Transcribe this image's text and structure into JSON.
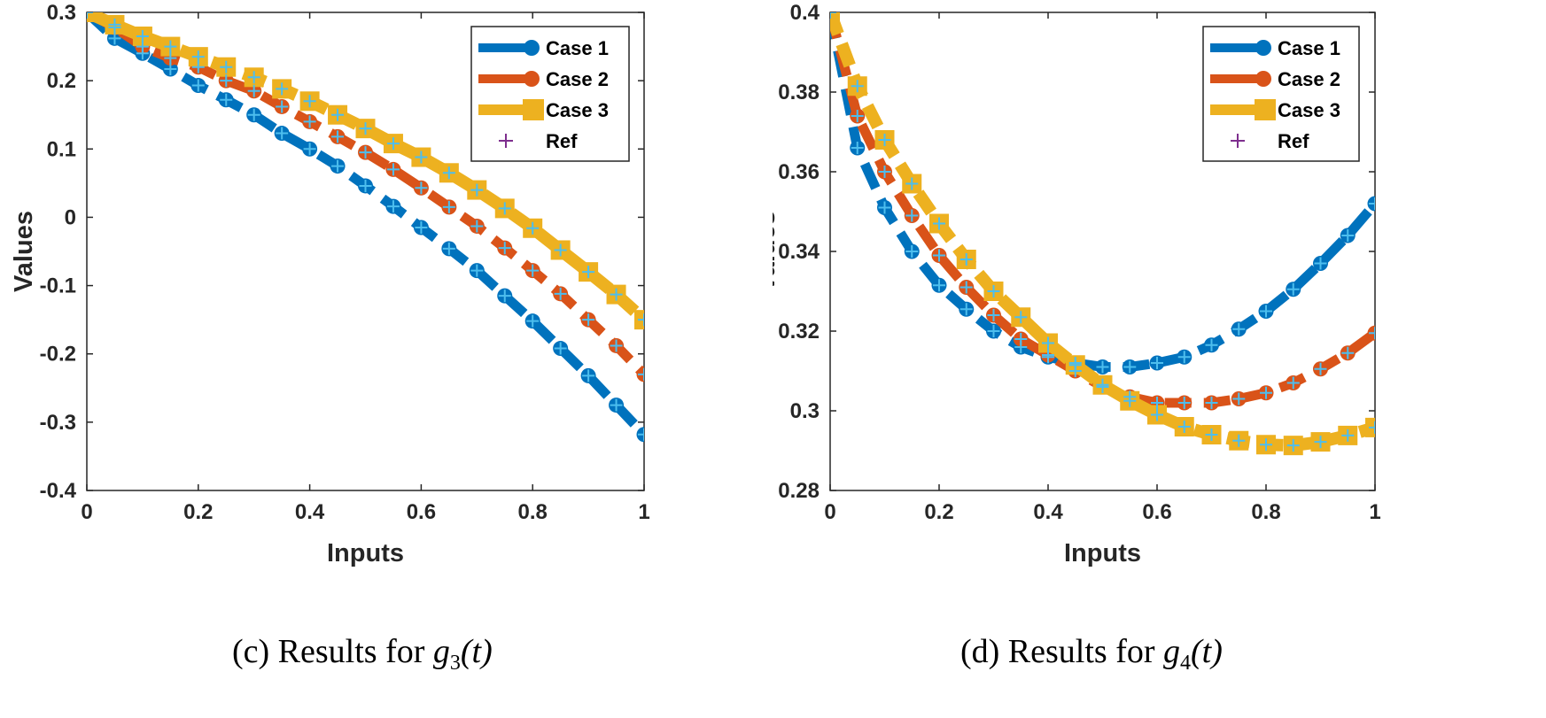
{
  "chart_data": [
    {
      "type": "line",
      "caption_prefix": "(c) Results for ",
      "caption_func": "g",
      "caption_sub": "3",
      "caption_arg": "(t)",
      "xlabel": "Inputs",
      "ylabel": "Values",
      "xlim": [
        0,
        1
      ],
      "ylim": [
        -0.4,
        0.3
      ],
      "xticks": [
        0,
        0.2,
        0.4,
        0.6,
        0.8,
        1
      ],
      "xtick_labels": [
        "0",
        "0.2",
        "0.4",
        "0.6",
        "0.8",
        "1"
      ],
      "yticks": [
        -0.4,
        -0.3,
        -0.2,
        -0.1,
        0,
        0.1,
        0.2,
        0.3
      ],
      "ytick_labels": [
        "-0.4",
        "-0.3",
        "-0.2",
        "-0.1",
        "0",
        "0.1",
        "0.2",
        "0.3"
      ],
      "legend": [
        "Case 1",
        "Case 2",
        "Case 3",
        "Ref"
      ],
      "legend_position": "top-right",
      "x": [
        0,
        0.05,
        0.1,
        0.15,
        0.2,
        0.25,
        0.3,
        0.35,
        0.4,
        0.45,
        0.5,
        0.55,
        0.6,
        0.65,
        0.7,
        0.75,
        0.8,
        0.85,
        0.9,
        0.95,
        1
      ],
      "series": [
        {
          "name": "Case 1",
          "color": "#0072BD",
          "marker": "circle",
          "values": [
            0.3,
            0.262,
            0.24,
            0.217,
            0.193,
            0.172,
            0.15,
            0.123,
            0.1,
            0.075,
            0.046,
            0.016,
            -0.015,
            -0.046,
            -0.078,
            -0.115,
            -0.152,
            -0.192,
            -0.232,
            -0.275,
            -0.318
          ]
        },
        {
          "name": "Case 2",
          "color": "#D95319",
          "marker": "circle",
          "values": [
            0.3,
            0.278,
            0.25,
            0.233,
            0.22,
            0.2,
            0.185,
            0.162,
            0.14,
            0.118,
            0.095,
            0.07,
            0.043,
            0.015,
            -0.013,
            -0.045,
            -0.078,
            -0.112,
            -0.15,
            -0.188,
            -0.23
          ]
        },
        {
          "name": "Case 3",
          "color": "#EDB120",
          "marker": "square",
          "values": [
            0.3,
            0.282,
            0.265,
            0.25,
            0.235,
            0.22,
            0.205,
            0.188,
            0.17,
            0.15,
            0.13,
            0.108,
            0.088,
            0.065,
            0.04,
            0.013,
            -0.016,
            -0.048,
            -0.08,
            -0.113,
            -0.15
          ]
        }
      ],
      "ref_color": "#7E2F8E"
    },
    {
      "type": "line",
      "caption_prefix": "(d) Results for ",
      "caption_func": "g",
      "caption_sub": "4",
      "caption_arg": "(t)",
      "xlabel": "Inputs",
      "ylabel": "Values",
      "xlim": [
        0,
        1
      ],
      "ylim": [
        0.28,
        0.4
      ],
      "xticks": [
        0,
        0.2,
        0.4,
        0.6,
        0.8,
        1
      ],
      "xtick_labels": [
        "0",
        "0.2",
        "0.4",
        "0.6",
        "0.8",
        "1"
      ],
      "yticks": [
        0.28,
        0.3,
        0.32,
        0.34,
        0.36,
        0.38,
        0.4
      ],
      "ytick_labels": [
        "0.28",
        "0.3",
        "0.32",
        "0.34",
        "0.36",
        "0.38",
        "0.4"
      ],
      "legend": [
        "Case 1",
        "Case 2",
        "Case 3",
        "Ref"
      ],
      "legend_position": "top-right",
      "x": [
        0,
        0.05,
        0.1,
        0.15,
        0.2,
        0.25,
        0.3,
        0.35,
        0.4,
        0.45,
        0.5,
        0.55,
        0.6,
        0.65,
        0.7,
        0.75,
        0.8,
        0.85,
        0.9,
        0.95,
        1
      ],
      "series": [
        {
          "name": "Case 1",
          "color": "#0072BD",
          "marker": "circle",
          "values": [
            0.4,
            0.366,
            0.351,
            0.34,
            0.3315,
            0.3255,
            0.32,
            0.316,
            0.3135,
            0.312,
            0.311,
            0.311,
            0.312,
            0.3135,
            0.3165,
            0.3205,
            0.325,
            0.3305,
            0.337,
            0.344,
            0.352
          ]
        },
        {
          "name": "Case 2",
          "color": "#D95319",
          "marker": "circle",
          "values": [
            0.4,
            0.374,
            0.36,
            0.349,
            0.339,
            0.331,
            0.324,
            0.318,
            0.314,
            0.31,
            0.306,
            0.3035,
            0.302,
            0.302,
            0.302,
            0.303,
            0.3045,
            0.307,
            0.3105,
            0.3145,
            0.3195
          ]
        },
        {
          "name": "Case 3",
          "color": "#EDB120",
          "marker": "square",
          "values": [
            0.4,
            0.3815,
            0.368,
            0.357,
            0.347,
            0.338,
            0.33,
            0.3235,
            0.317,
            0.3115,
            0.3065,
            0.3025,
            0.299,
            0.296,
            0.294,
            0.2925,
            0.2915,
            0.2913,
            0.2922,
            0.2938,
            0.2958
          ]
        }
      ],
      "ref_color": "#7E2F8E"
    }
  ]
}
